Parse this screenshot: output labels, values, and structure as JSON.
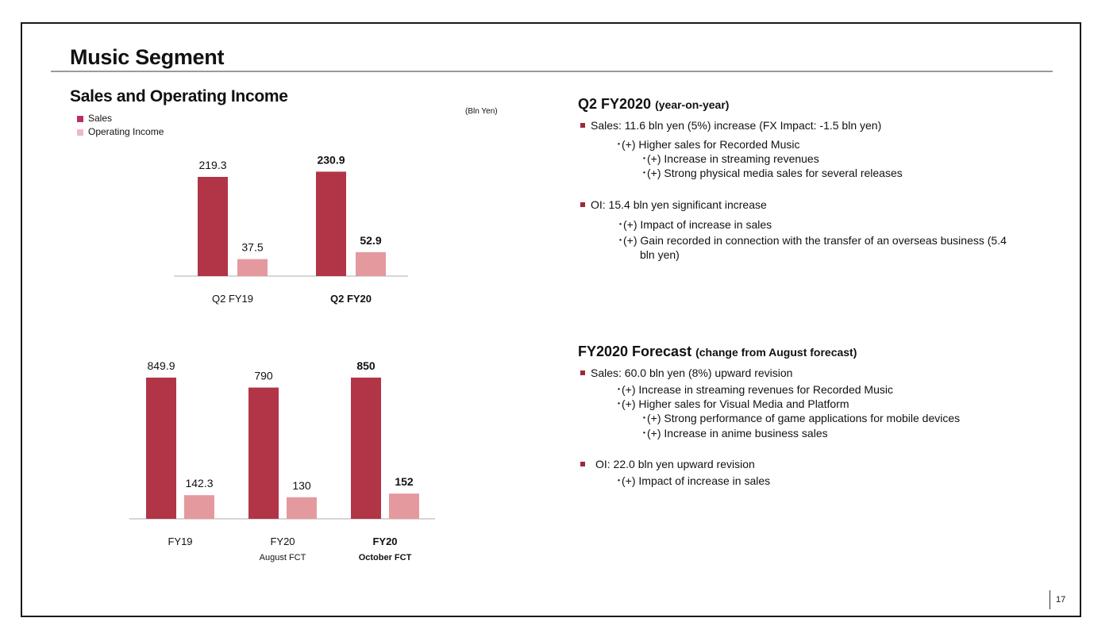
{
  "page": {
    "title": "Music Segment",
    "page_number": "17",
    "colors": {
      "sales": "#b13547",
      "oi": "#e4999e",
      "bullet": "#9c2a3a"
    }
  },
  "chart_data": [
    {
      "type": "bar",
      "title": "Sales and Operating Income",
      "unit": "(Bln Yen)",
      "categories": [
        {
          "label": "Q2 FY19",
          "sub": "",
          "bold": false
        },
        {
          "label": "Q2 FY20",
          "sub": "",
          "bold": true
        }
      ],
      "series": [
        {
          "name": "Sales",
          "values": [
            219.3,
            230.9
          ]
        },
        {
          "name": "Operating Income",
          "values": [
            37.5,
            52.9
          ]
        }
      ],
      "value_labels": [
        [
          "219.3",
          "230.9"
        ],
        [
          "37.5",
          "52.9"
        ]
      ],
      "legend": "top-left",
      "grid": false
    },
    {
      "type": "bar",
      "categories": [
        {
          "label": "FY19",
          "sub": "",
          "bold": false
        },
        {
          "label": "FY20",
          "sub": "August FCT",
          "bold": false
        },
        {
          "label": "FY20",
          "sub": "October FCT",
          "bold": true
        }
      ],
      "series": [
        {
          "name": "Sales",
          "values": [
            849.9,
            790,
            850
          ]
        },
        {
          "name": "Operating Income",
          "values": [
            142.3,
            130,
            152
          ]
        }
      ],
      "value_labels": [
        [
          "849.9",
          "790",
          "850"
        ],
        [
          "142.3",
          "130",
          "152"
        ]
      ],
      "grid": false
    }
  ],
  "q2": {
    "heading": "Q2 FY2020",
    "heading_note": "(year-on-year)",
    "sales": "Sales: 11.6 bln yen (5%) increase (FX Impact: -1.5 bln yen)",
    "s1": "･(+) Higher sales for Recorded Music",
    "s1a": "･(+) Increase in streaming revenues",
    "s1b": "･(+) Strong physical media sales for several releases",
    "oi": "OI: 15.4 bln yen significant increase",
    "o1": "･(+) Impact of increase in sales",
    "o2": "･(+) Gain recorded in connection with the transfer of an overseas business (5.4",
    "o2b": "bln yen)"
  },
  "fc": {
    "heading": "FY2020 Forecast",
    "heading_note": "(change from August forecast)",
    "sales": "Sales: 60.0 bln yen (8%) upward revision",
    "s1": "･(+) Increase in streaming revenues for Recorded Music",
    "s2": "･(+) Higher sales for Visual Media and Platform",
    "s2a": "･(+) Strong performance of game applications for mobile devices",
    "s2b": "･(+) Increase in anime business sales",
    "oi": "OI: 22.0 bln yen upward revision",
    "o1": "･(+) Impact of increase in sales"
  }
}
